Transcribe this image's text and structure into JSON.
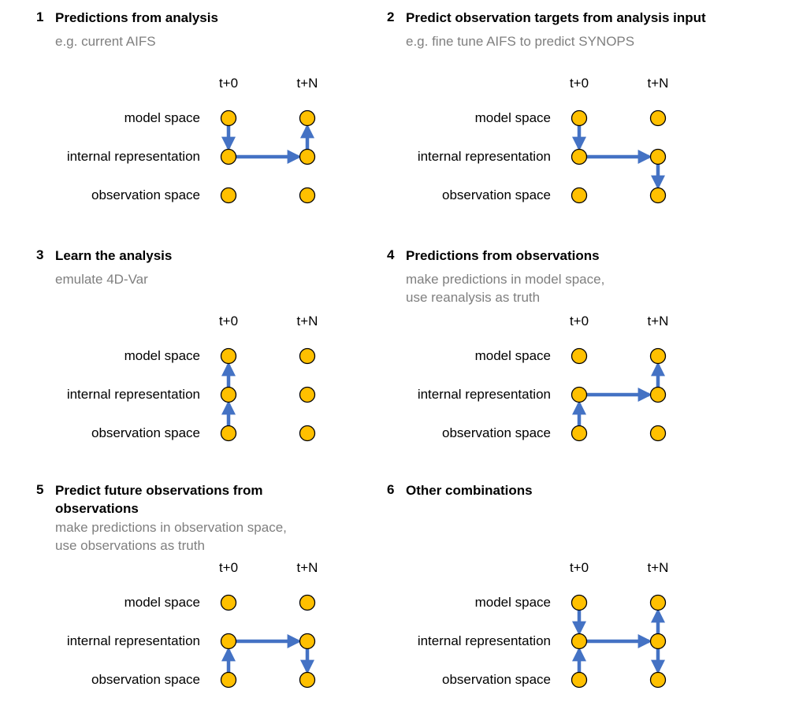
{
  "col_labels": [
    "t+0",
    "t+N"
  ],
  "row_labels": [
    "model space",
    "internal representation",
    "observation space"
  ],
  "colors": {
    "node_fill": "#FFC000",
    "node_stroke": "#000000",
    "arrow": "#4472C4",
    "subtitle": "#7F7F7F"
  },
  "panels": [
    {
      "number": "1",
      "title": "Predictions from analysis",
      "title_lines": [
        "Predictions from analysis"
      ],
      "subtitle_lines": [
        "e.g. current AIFS"
      ],
      "arrows": [
        {
          "from": "t+0 model space",
          "to": "t+0 internal representation"
        },
        {
          "from": "t+0 internal representation",
          "to": "t+N internal representation"
        },
        {
          "from": "t+N internal representation",
          "to": "t+N model space"
        }
      ]
    },
    {
      "number": "2",
      "title": "Predict observation targets from analysis input",
      "title_lines": [
        "Predict observation targets from analysis input"
      ],
      "subtitle_lines": [
        "e.g. fine tune AIFS to predict SYNOPS"
      ],
      "arrows": [
        {
          "from": "t+0 model space",
          "to": "t+0 internal representation"
        },
        {
          "from": "t+0 internal representation",
          "to": "t+N internal representation"
        },
        {
          "from": "t+N internal representation",
          "to": "t+N observation space"
        }
      ]
    },
    {
      "number": "3",
      "title": "Learn the analysis",
      "title_lines": [
        "Learn the analysis"
      ],
      "subtitle_lines": [
        "emulate 4D-Var"
      ],
      "arrows": [
        {
          "from": "t+0 observation space",
          "to": "t+0 internal representation"
        },
        {
          "from": "t+0 internal representation",
          "to": "t+0 model space"
        }
      ]
    },
    {
      "number": "4",
      "title": "Predictions from observations",
      "title_lines": [
        "Predictions from observations"
      ],
      "subtitle_lines": [
        "make predictions in model space,",
        "use reanalysis as truth"
      ],
      "arrows": [
        {
          "from": "t+0 observation space",
          "to": "t+0 internal representation"
        },
        {
          "from": "t+0 internal representation",
          "to": "t+N internal representation"
        },
        {
          "from": "t+N internal representation",
          "to": "t+N model space"
        }
      ]
    },
    {
      "number": "5",
      "title": "Predict future observations from observations",
      "title_lines": [
        "Predict future observations from",
        "observations"
      ],
      "subtitle_lines": [
        "make predictions in observation space,",
        "use observations as truth"
      ],
      "arrows": [
        {
          "from": "t+0 observation space",
          "to": "t+0 internal representation"
        },
        {
          "from": "t+0 internal representation",
          "to": "t+N internal representation"
        },
        {
          "from": "t+N internal representation",
          "to": "t+N observation space"
        }
      ]
    },
    {
      "number": "6",
      "title": "Other combinations",
      "title_lines": [
        "Other combinations"
      ],
      "subtitle_lines": [],
      "arrows": [
        {
          "from": "t+0 model space",
          "to": "t+0 internal representation"
        },
        {
          "from": "t+0 observation space",
          "to": "t+0 internal representation"
        },
        {
          "from": "t+0 internal representation",
          "to": "t+N internal representation"
        },
        {
          "from": "t+N internal representation",
          "to": "t+N model space"
        },
        {
          "from": "t+N internal representation",
          "to": "t+N observation space"
        }
      ]
    }
  ]
}
